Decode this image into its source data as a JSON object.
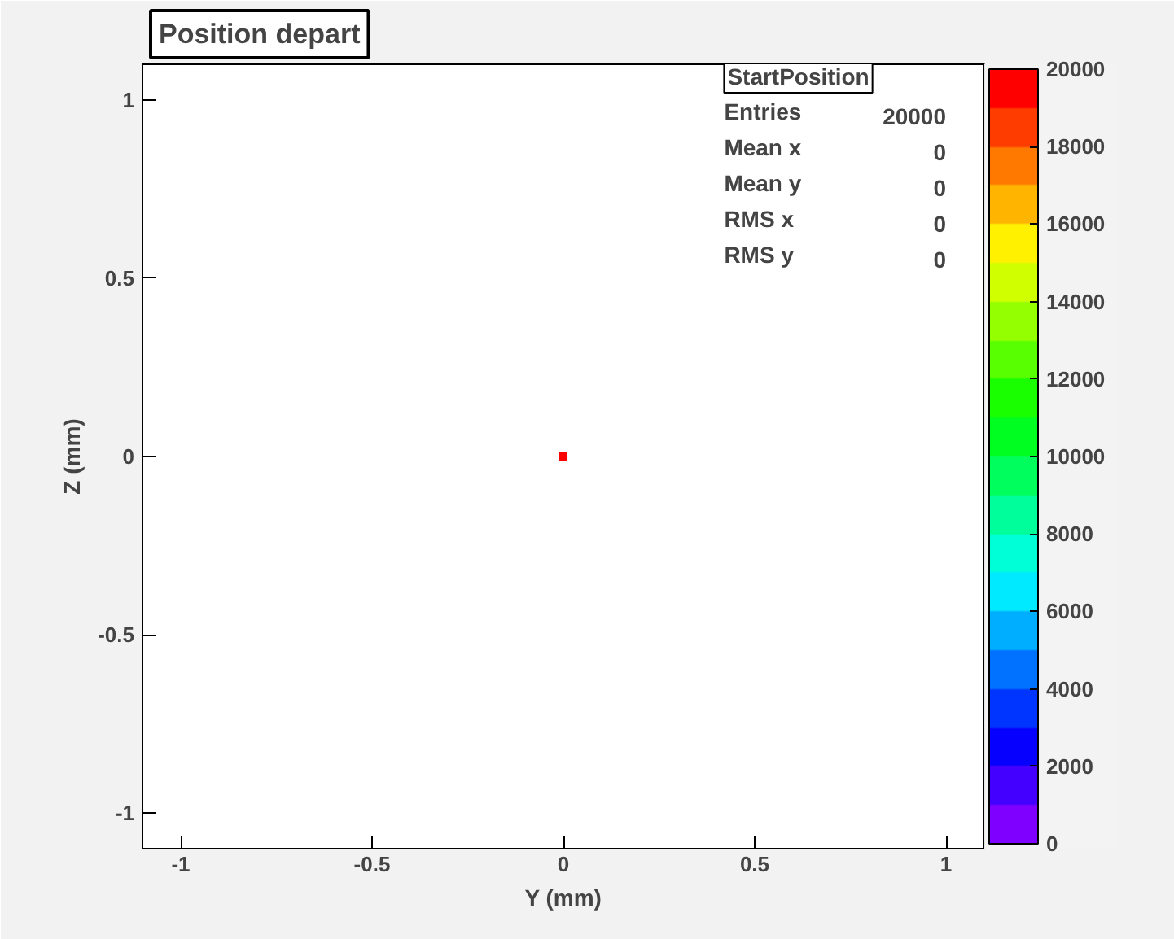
{
  "chart_data": {
    "type": "scatter",
    "title": "Position depart",
    "xlabel": "Y (mm)",
    "ylabel": "Z (mm)",
    "x": [
      0
    ],
    "values": [
      0
    ],
    "cvalues": [
      20000
    ],
    "xlim": [
      -1.1,
      1.1
    ],
    "ylim": [
      -1.1,
      1.1
    ],
    "xticks": [
      -1,
      -0.5,
      0,
      0.5,
      1
    ],
    "yticks": [
      -1,
      -0.5,
      0,
      0.5,
      1
    ],
    "clim": [
      0,
      20000
    ],
    "cticks": [
      0,
      2000,
      4000,
      6000,
      8000,
      10000,
      12000,
      14000,
      16000,
      18000,
      20000
    ],
    "marker": "square",
    "grid": false,
    "annotations": [
      "StartPosition",
      "Entries",
      "20000",
      "Mean x",
      "0",
      "Mean y",
      "0",
      "RMS x",
      "0",
      "RMS y",
      "0"
    ]
  }
}
